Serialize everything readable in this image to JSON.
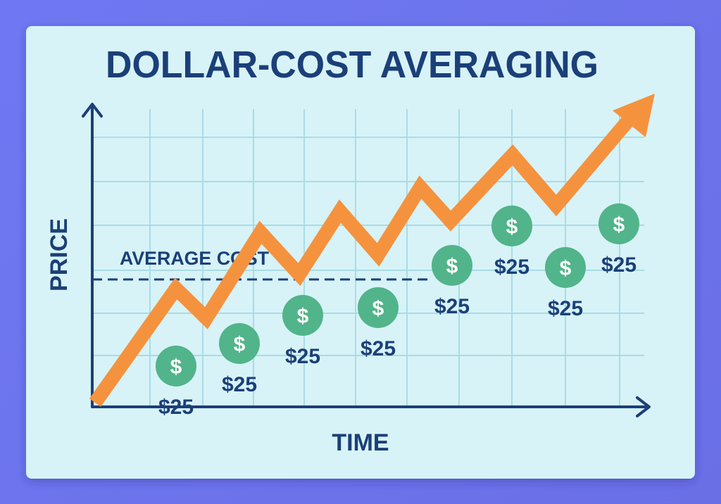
{
  "header": {
    "title": "DOLLAR-COST AVERAGING"
  },
  "axes": {
    "y_label": "PRICE",
    "x_label": "TIME"
  },
  "average_label": "AVERAGE COST",
  "coins": [
    {
      "symbol": "$",
      "amount": "$25"
    },
    {
      "symbol": "$",
      "amount": "$25"
    },
    {
      "symbol": "$",
      "amount": "$25"
    },
    {
      "symbol": "$",
      "amount": "$25"
    },
    {
      "symbol": "$",
      "amount": "$25"
    },
    {
      "symbol": "$",
      "amount": "$25"
    },
    {
      "symbol": "$",
      "amount": "$25"
    },
    {
      "symbol": "$",
      "amount": "$25"
    }
  ]
}
